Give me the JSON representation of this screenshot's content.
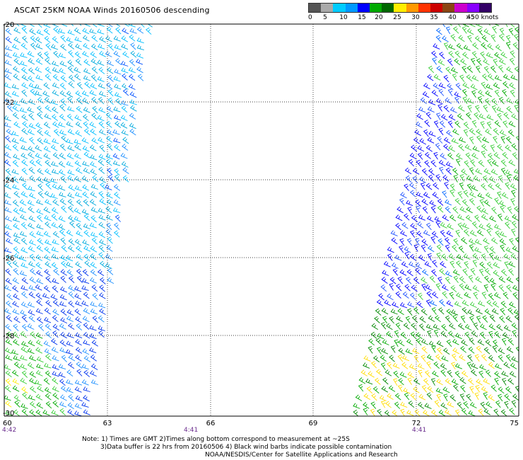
{
  "title": "ASCAT 25KM NOAA Winds 20160506 descending",
  "legend": {
    "colors": [
      "#555555",
      "#aaaaaa",
      "#00ccff",
      "#0099ff",
      "#0000ff",
      "#00aa00",
      "#006600",
      "#ffee00",
      "#ff9900",
      "#ff3300",
      "#cc0000",
      "#8b4513",
      "#cc00cc",
      "#8800ff",
      "#330066"
    ],
    "labels": [
      "0",
      "5",
      "10",
      "15",
      "20",
      "25",
      "30",
      "35",
      "40",
      "45",
      ">50 knots"
    ]
  },
  "axes": {
    "lon_ticks": [
      "60",
      "63",
      "66",
      "69",
      "72",
      "75"
    ],
    "lat_ticks": [
      "-20",
      "-22",
      "-24",
      "-26",
      "-28",
      "-30"
    ]
  },
  "time_labels": [
    "4:42",
    "4:41",
    "4:41"
  ],
  "notes": {
    "line1": "Note: 1) Times are GMT 2)Times along bottom correspond to measurement at ~25S",
    "line2": "3)Data buffer is 22 hrs from 20160506 4) Black wind barbs indicate possible contamination",
    "line3": "NOAA/NESDIS/Center for Satellite Applications and Research"
  }
}
